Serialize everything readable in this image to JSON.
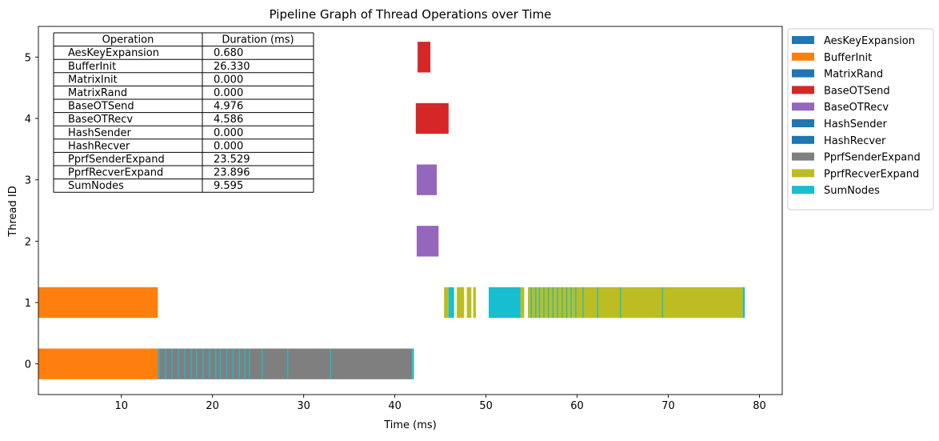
{
  "chart_data": {
    "type": "gantt",
    "title": "Pipeline Graph of Thread Operations over Time",
    "xlabel": "Time (ms)",
    "ylabel": "Thread ID",
    "xlim": [
      0.9,
      82.5
    ],
    "ylim": [
      -0.5,
      5.5
    ],
    "xticks": [
      10,
      20,
      30,
      40,
      50,
      60,
      70,
      80
    ],
    "yticks": [
      0,
      1,
      2,
      3,
      4,
      5
    ],
    "bar_height": 0.5,
    "legend_position": "outside-right",
    "operations": [
      {
        "name": "AesKeyExpansion",
        "color": "#1f77b4"
      },
      {
        "name": "BufferInit",
        "color": "#ff7f0e"
      },
      {
        "name": "MatrixRand",
        "color": "#1f77b4"
      },
      {
        "name": "BaseOTSend",
        "color": "#d62728"
      },
      {
        "name": "BaseOTRecv",
        "color": "#9467bd"
      },
      {
        "name": "HashSender",
        "color": "#1f77b4"
      },
      {
        "name": "HashRecver",
        "color": "#1f77b4"
      },
      {
        "name": "PprfSenderExpand",
        "color": "#7f7f7f"
      },
      {
        "name": "PprfRecverExpand",
        "color": "#bcbd22"
      },
      {
        "name": "SumNodes",
        "color": "#17becf"
      }
    ],
    "segments": [
      {
        "thread": 5,
        "op": "BaseOTSend",
        "start": 42.5,
        "end": 43.9
      },
      {
        "thread": 4,
        "op": "BaseOTSend",
        "start": 42.3,
        "end": 45.9
      },
      {
        "thread": 3,
        "op": "BaseOTRecv",
        "start": 42.4,
        "end": 44.6
      },
      {
        "thread": 2,
        "op": "BaseOTRecv",
        "start": 42.4,
        "end": 44.8
      },
      {
        "thread": 1,
        "op": "BufferInit",
        "start": 0.9,
        "end": 14.0
      },
      {
        "thread": 1,
        "op": "PprfRecverExpand",
        "start": 45.4,
        "end": 45.9
      },
      {
        "thread": 1,
        "op": "SumNodes",
        "start": 45.9,
        "end": 46.5
      },
      {
        "thread": 1,
        "op": "PprfRecverExpand",
        "start": 46.8,
        "end": 47.6
      },
      {
        "thread": 1,
        "op": "PprfRecverExpand",
        "start": 47.9,
        "end": 48.4
      },
      {
        "thread": 1,
        "op": "PprfRecverExpand",
        "start": 48.6,
        "end": 48.9
      },
      {
        "thread": 1,
        "op": "SumNodes",
        "start": 50.3,
        "end": 53.8
      },
      {
        "thread": 1,
        "op": "PprfRecverExpand",
        "start": 53.8,
        "end": 54.2
      },
      {
        "thread": 1,
        "op": "PprfRecverExpand",
        "start": 54.6,
        "end": 78.2
      },
      {
        "thread": 1,
        "op": "SumNodes",
        "start": 78.2,
        "end": 78.4
      },
      {
        "thread": 0,
        "op": "BufferInit",
        "start": 0.9,
        "end": 14.0
      },
      {
        "thread": 0,
        "op": "PprfSenderExpand",
        "start": 14.0,
        "end": 41.9
      },
      {
        "thread": 0,
        "op": "SumNodes",
        "start": 41.9,
        "end": 42.1
      }
    ],
    "separators": [
      {
        "thread": 0,
        "times": [
          14.1,
          14.8,
          15.5,
          16.2,
          16.9,
          17.6,
          18.2,
          18.9,
          19.6,
          20.3,
          20.8,
          21.5,
          22.2,
          22.9,
          23.5,
          24.0,
          25.4,
          28.2,
          32.9
        ]
      },
      {
        "thread": 1,
        "times": [
          54.9,
          55.4,
          55.8,
          56.3,
          56.8,
          57.3,
          57.8,
          58.3,
          58.8,
          59.3,
          59.8,
          60.6,
          62.2,
          64.7,
          69.3
        ]
      }
    ],
    "table": {
      "headers": [
        "Operation",
        "Duration (ms)"
      ],
      "rows": [
        [
          "AesKeyExpansion",
          "0.680"
        ],
        [
          "BufferInit",
          "26.330"
        ],
        [
          "MatrixInit",
          "0.000"
        ],
        [
          "MatrixRand",
          "0.000"
        ],
        [
          "BaseOTSend",
          "4.976"
        ],
        [
          "BaseOTRecv",
          "4.586"
        ],
        [
          "HashSender",
          "0.000"
        ],
        [
          "HashRecver",
          "0.000"
        ],
        [
          "PprfSenderExpand",
          "23.529"
        ],
        [
          "PprfRecverExpand",
          "23.896"
        ],
        [
          "SumNodes",
          "9.595"
        ]
      ]
    }
  }
}
